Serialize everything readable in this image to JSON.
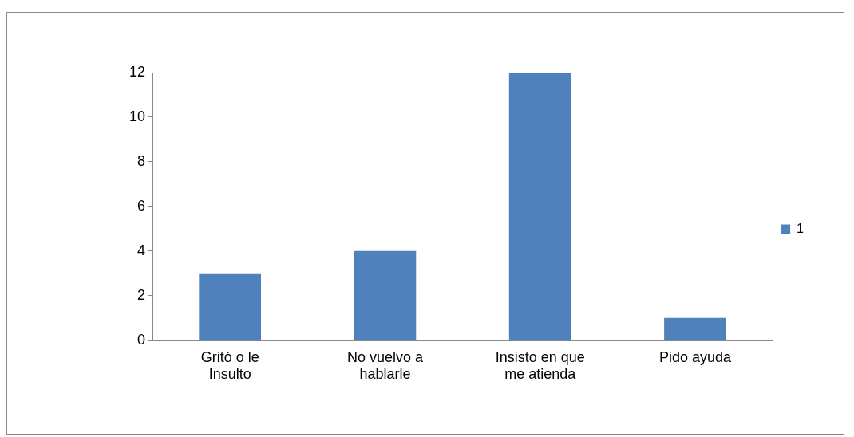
{
  "chart_data": {
    "type": "bar",
    "categories": [
      "Gritó o le Insulto",
      "No vuelvo a hablarle",
      "Insisto en que me atienda",
      "Pido ayuda"
    ],
    "series": [
      {
        "name": "1",
        "color": "#4f81bd",
        "values": [
          3,
          4,
          12,
          1
        ]
      }
    ],
    "ylim": [
      0,
      12
    ],
    "yticks": [
      0,
      2,
      4,
      6,
      8,
      10,
      12
    ],
    "grid": false,
    "legend": "right"
  }
}
